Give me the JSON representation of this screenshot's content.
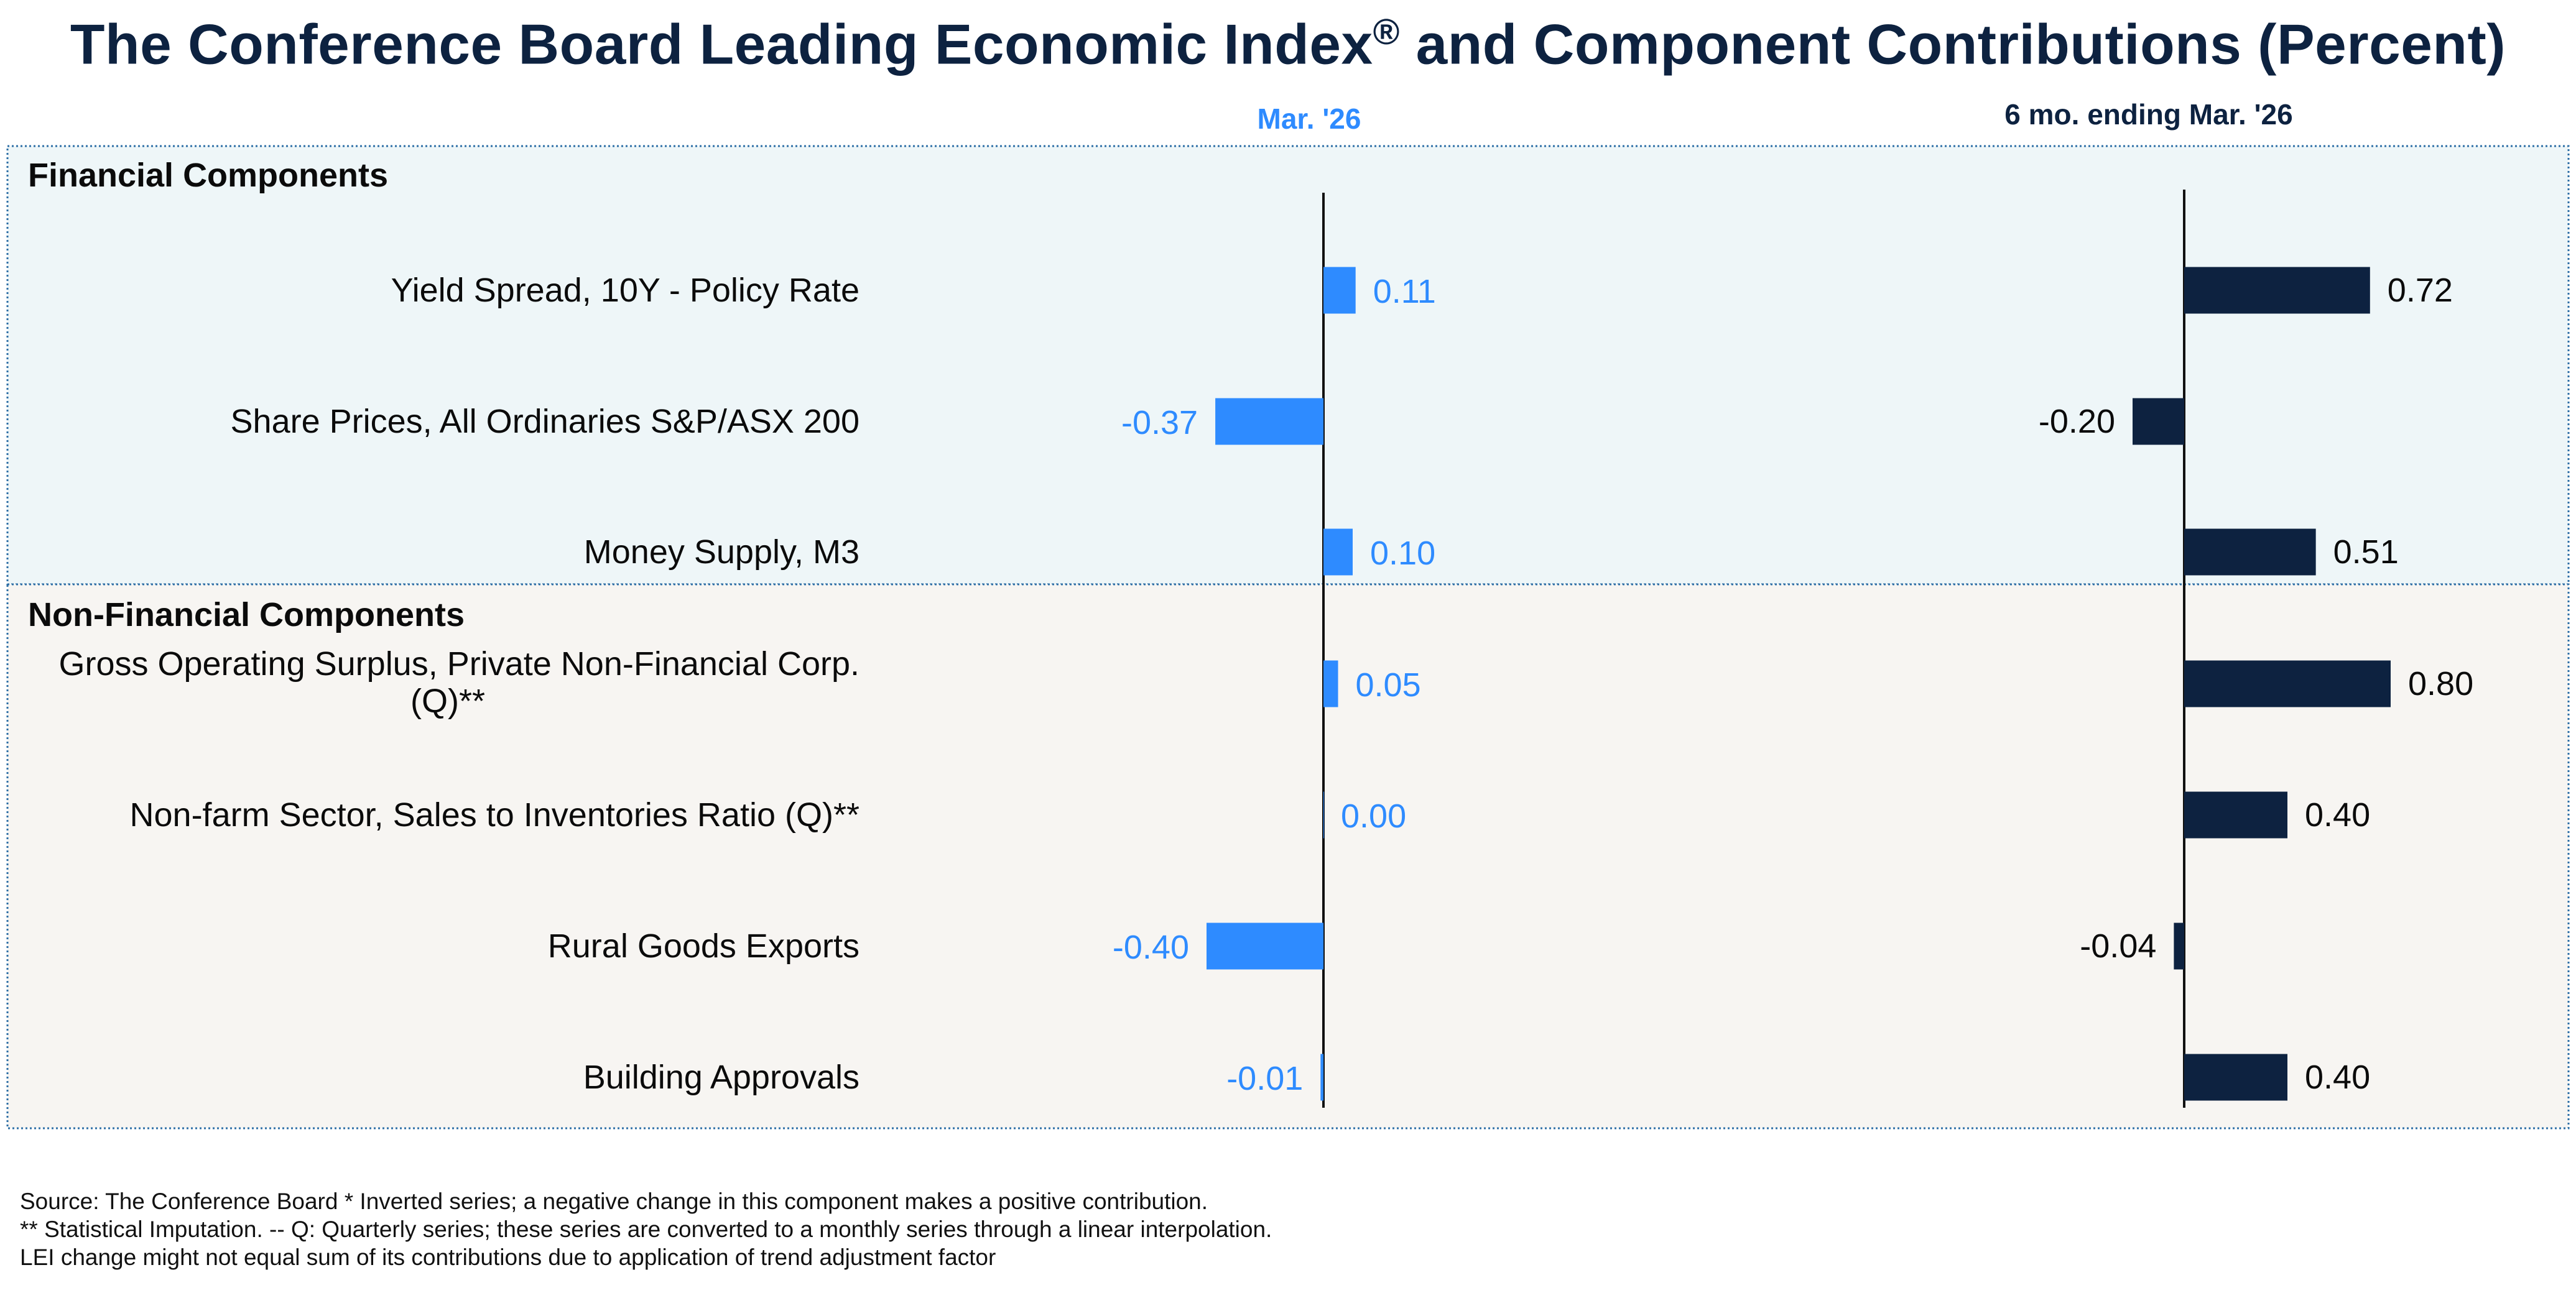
{
  "title": {
    "main": "The Conference Board Leading Economic Index",
    "reg": "®",
    "rest": " and Component Contributions (Percent)"
  },
  "colors": {
    "monthly": "#2e8bff",
    "sixmonth": "#0d2240",
    "financial_bg": "#eef6f8",
    "nonfinancial_bg": "#f7f5f2",
    "border": "#2e6fa6"
  },
  "chart_data": {
    "type": "bar",
    "orientation": "horizontal",
    "columns": [
      "Mar. '26",
      "6 mo. ending Mar. '26"
    ],
    "groups": [
      {
        "name": "Financial Components",
        "categories": [
          "Yield Spread, 10Y - Policy Rate",
          "Share Prices, All Ordinaries S&P/ASX 200",
          "Money Supply, M3"
        ],
        "monthly": [
          0.11,
          -0.37,
          0.1
        ],
        "sixmonth": [
          0.72,
          -0.2,
          0.51
        ],
        "monthly_labels": [
          "0.11",
          "-0.37",
          "0.10"
        ],
        "sixmonth_labels": [
          "0.72",
          "-0.20",
          "0.51"
        ]
      },
      {
        "name": "Non-Financial Components",
        "categories": [
          "Gross Operating Surplus, Private Non-Financial Corp. (Q)**",
          "Non-farm Sector, Sales to Inventories Ratio (Q)**",
          "Rural Goods Exports",
          "Building Approvals"
        ],
        "category_lines": [
          [
            "Gross Operating Surplus, Private Non-Financial Corp.",
            "(Q)**"
          ],
          [
            "Non-farm Sector, Sales to Inventories Ratio (Q)**"
          ],
          [
            "Rural Goods Exports"
          ],
          [
            "Building Approvals"
          ]
        ],
        "monthly": [
          0.05,
          0.0,
          -0.4,
          -0.01
        ],
        "sixmonth": [
          0.8,
          0.4,
          -0.04,
          0.4
        ],
        "monthly_labels": [
          "0.05",
          "0.00",
          "-0.40",
          "-0.01"
        ],
        "sixmonth_labels": [
          "0.80",
          "0.40",
          "-0.04",
          "0.40"
        ]
      }
    ]
  },
  "notes": [
    "Source: The Conference Board *  Inverted series; a negative change in this component makes a positive contribution.",
    "**  Statistical Imputation. -- Q: Quarterly series; these series are converted to a monthly series through a linear interpolation.",
    "LEI change might not equal sum of its contributions due to application of trend adjustment factor"
  ]
}
